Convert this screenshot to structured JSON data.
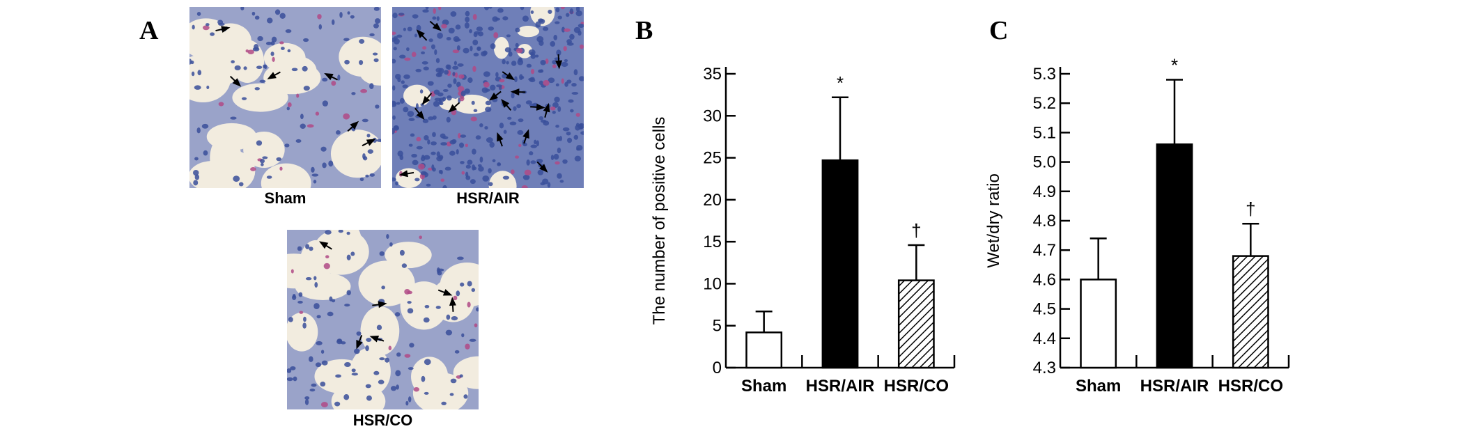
{
  "panels": {
    "a": {
      "letter": "A",
      "images": [
        {
          "label": "Sham"
        },
        {
          "label": "HSR/AIR"
        },
        {
          "label": "HSR/CO"
        }
      ]
    },
    "b": {
      "letter": "B"
    },
    "c": {
      "letter": "C"
    }
  },
  "colors": {
    "bar_sham": "#ffffff",
    "bar_air": "#000000",
    "bar_co": "hatched",
    "tissue_background": "#f2ecdf",
    "nuclei": "#3a4f9a",
    "stain": "#b04a86"
  },
  "chart_data": [
    {
      "type": "bar",
      "categories": [
        "Sham",
        "HSR/AIR",
        "HSR/CO"
      ],
      "values": [
        4.2,
        24.7,
        10.4
      ],
      "errors": [
        2.5,
        7.5,
        4.2
      ],
      "significance": [
        "",
        "*",
        "†"
      ],
      "ylabel": "The number of positive cells",
      "ylim": [
        0,
        35
      ],
      "yticks": [
        "0",
        "5",
        "10",
        "15",
        "20",
        "25",
        "30",
        "35"
      ],
      "tick_values": [
        0,
        5,
        10,
        15,
        20,
        25,
        30,
        35
      ]
    },
    {
      "type": "bar",
      "categories": [
        "Sham",
        "HSR/AIR",
        "HSR/CO"
      ],
      "values": [
        4.6,
        5.06,
        4.68
      ],
      "errors": [
        0.14,
        0.22,
        0.11
      ],
      "significance": [
        "",
        "*",
        "†"
      ],
      "ylabel": "Wet/dry ratio",
      "ylim": [
        4.3,
        5.3
      ],
      "yticks": [
        "4.3",
        "4.4",
        "4.5",
        "4.6",
        "4.7",
        "4.8",
        "4.9",
        "5.0",
        "5.1",
        "5.2",
        "5.3"
      ],
      "tick_values": [
        4.3,
        4.4,
        4.5,
        4.6,
        4.7,
        4.8,
        4.9,
        5.0,
        5.1,
        5.2,
        5.3
      ]
    }
  ]
}
